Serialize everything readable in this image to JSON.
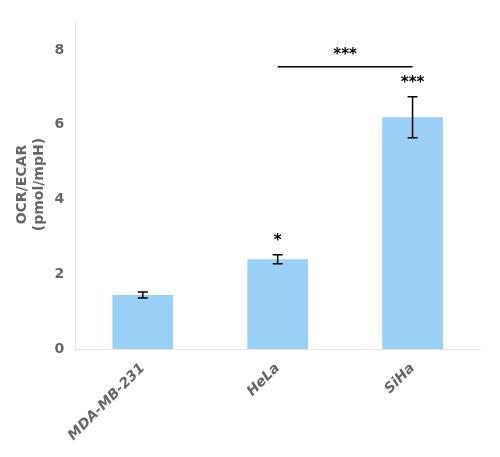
{
  "chart_data": {
    "type": "bar",
    "categories": [
      "MDA-MB-231",
      "HeLa",
      "SiHa"
    ],
    "values": [
      1.45,
      2.4,
      6.2
    ],
    "errors": [
      0.08,
      0.12,
      0.55
    ],
    "significance_labels": [
      null,
      "*",
      "***"
    ],
    "annotations": [
      {
        "type": "bracket",
        "x1": "HeLa",
        "x2": "SiHa",
        "y": 7.55,
        "text": "***"
      }
    ],
    "ylabel": "OCR/ECAR\n(pmol/mpH)",
    "ylim": [
      0,
      8.8
    ],
    "yticks": [
      0,
      2,
      4,
      6,
      8
    ],
    "grid": false
  }
}
